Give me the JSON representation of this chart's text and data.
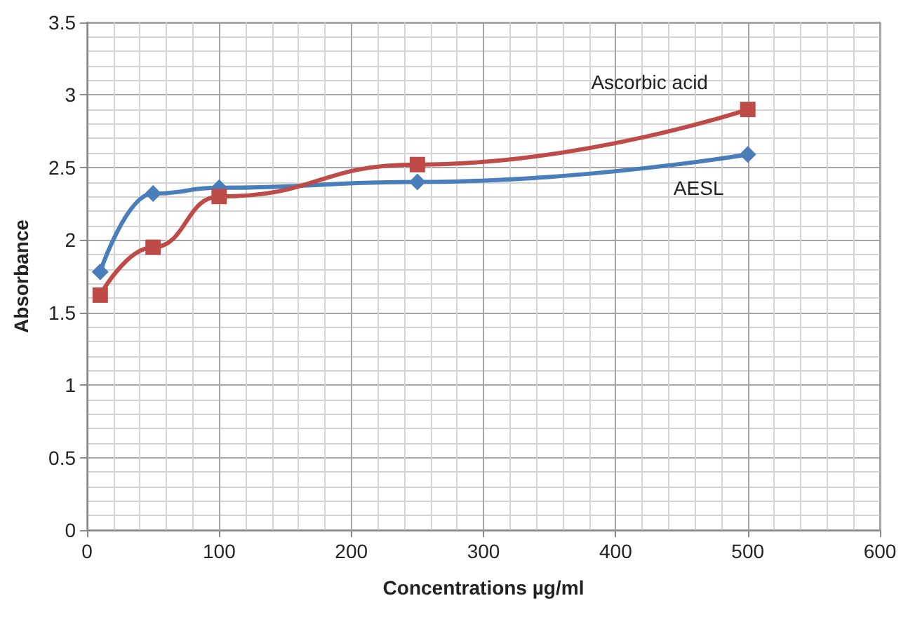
{
  "chart_data": {
    "type": "line",
    "xlabel": "Concentrations µg/ml",
    "ylabel": "Absorbance",
    "xlim": [
      0,
      600
    ],
    "xticks": [
      0,
      100,
      200,
      300,
      400,
      500,
      600
    ],
    "ylim": [
      0,
      3.5
    ],
    "yticks": [
      0,
      0.5,
      1,
      1.5,
      2,
      2.5,
      3,
      3.5
    ],
    "grid": true,
    "legend": false,
    "series": [
      {
        "name": "AESL",
        "color": "#4a7ebb",
        "marker": "diamond",
        "x": [
          10,
          50,
          100,
          250,
          500
        ],
        "values": [
          1.78,
          2.32,
          2.36,
          2.4,
          2.59
        ]
      },
      {
        "name": "Ascorbic acid",
        "color": "#be4b48",
        "marker": "square",
        "x": [
          10,
          50,
          100,
          250,
          500
        ],
        "values": [
          1.62,
          1.95,
          2.3,
          2.52,
          2.9
        ]
      }
    ]
  }
}
